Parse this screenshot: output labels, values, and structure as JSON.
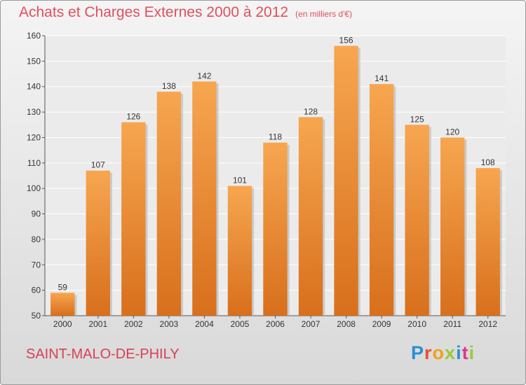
{
  "chart_data": {
    "type": "bar",
    "title": "Achats et Charges Externes 2000 à 2012",
    "unit_note": "(en milliers d'€)",
    "categories": [
      "2000",
      "2001",
      "2002",
      "2003",
      "2004",
      "2005",
      "2006",
      "2007",
      "2008",
      "2009",
      "2010",
      "2011",
      "2012"
    ],
    "values": [
      59,
      107,
      126,
      138,
      142,
      101,
      118,
      128,
      156,
      141,
      125,
      120,
      108
    ],
    "ylim": [
      50,
      160
    ],
    "yticks": [
      50,
      60,
      70,
      80,
      90,
      100,
      110,
      120,
      130,
      140,
      150,
      160
    ],
    "grid": true,
    "bar_color_top": "#f7a650",
    "bar_color_bottom": "#d86f1c"
  },
  "footer": {
    "location": "SAINT-MALO-DE-PHILY",
    "brand": "Proxiti",
    "brand_colors": [
      "#2a8fd6",
      "#e8502e",
      "#f0a020",
      "#9ac93a",
      "#2a8fd6",
      "#d83a8a",
      "#9ac93a"
    ]
  }
}
